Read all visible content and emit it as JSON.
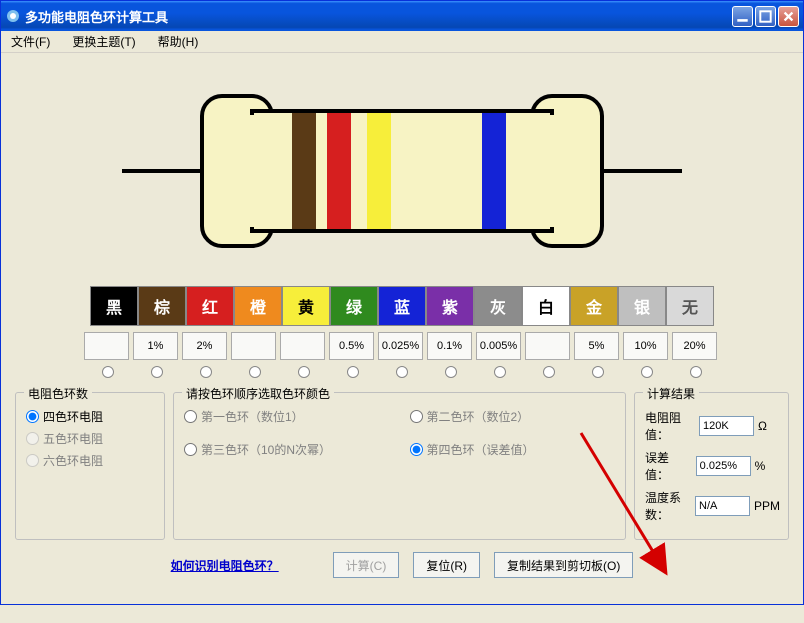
{
  "window": {
    "title": "多功能电阻色环计算工具"
  },
  "menu": {
    "file": "文件(F)",
    "theme": "更换主题(T)",
    "help": "帮助(H)"
  },
  "resistor": {
    "body_color": "#f7f3c4",
    "outline": "#000000",
    "lead_color": "#000000",
    "bands": [
      {
        "color": "#5a3a16"
      },
      {
        "color": "#d61f1f"
      },
      {
        "color": "#f7ee3a"
      },
      {
        "color": "#1423d6"
      }
    ]
  },
  "color_palette": [
    {
      "label": "黑",
      "bg": "#000000",
      "fg": "#ffffff"
    },
    {
      "label": "棕",
      "bg": "#5a3a16",
      "fg": "#ffffff"
    },
    {
      "label": "红",
      "bg": "#d61f1f",
      "fg": "#ffffff"
    },
    {
      "label": "橙",
      "bg": "#ef8a1e",
      "fg": "#ffffff"
    },
    {
      "label": "黄",
      "bg": "#f7ee3a",
      "fg": "#000000"
    },
    {
      "label": "绿",
      "bg": "#2f8a1e",
      "fg": "#ffffff"
    },
    {
      "label": "蓝",
      "bg": "#1423d6",
      "fg": "#ffffff"
    },
    {
      "label": "紫",
      "bg": "#7a2fa8",
      "fg": "#ffffff"
    },
    {
      "label": "灰",
      "bg": "#8c8c8c",
      "fg": "#ffffff"
    },
    {
      "label": "白",
      "bg": "#ffffff",
      "fg": "#000000"
    },
    {
      "label": "金",
      "bg": "#c9a227",
      "fg": "#ffffff"
    },
    {
      "label": "银",
      "bg": "#bfbfbf",
      "fg": "#ffffff"
    },
    {
      "label": "无",
      "bg": "#d9d9d9",
      "fg": "#555555"
    }
  ],
  "tolerances": [
    "",
    "1%",
    "2%",
    "",
    "",
    "0.5%",
    "0.025%",
    "0.1%",
    "0.005%",
    "",
    "5%",
    "10%",
    "20%"
  ],
  "band_count_group": {
    "legend": "电阻色环数",
    "options": [
      {
        "label": "四色环电阻",
        "checked": true,
        "enabled": true
      },
      {
        "label": "五色环电阻",
        "checked": false,
        "enabled": false
      },
      {
        "label": "六色环电阻",
        "checked": false,
        "enabled": false
      }
    ]
  },
  "band_select_group": {
    "legend": "请按色环顺序选取色环颜色",
    "options": [
      {
        "label": "第一色环（数位1）",
        "checked": false
      },
      {
        "label": "第二色环（数位2）",
        "checked": false
      },
      {
        "label": "第三色环（10的N次幂）",
        "checked": false
      },
      {
        "label": "第四色环（误差值）",
        "checked": true
      }
    ]
  },
  "result_group": {
    "legend": "计算结果",
    "rows": [
      {
        "label": "电阻阻值：",
        "value": "120K",
        "unit": "Ω"
      },
      {
        "label": "误差值：",
        "value": "0.025%",
        "unit": "%"
      },
      {
        "label": "温度系数：",
        "value": "N/A",
        "unit": "PPM"
      }
    ]
  },
  "bottom": {
    "link": "如何识别电阻色环？",
    "calc": "计算(C)",
    "reset": "复位(R)",
    "copy": "复制结果到剪切板(O)"
  },
  "arrow": {
    "color": "#d40000"
  }
}
